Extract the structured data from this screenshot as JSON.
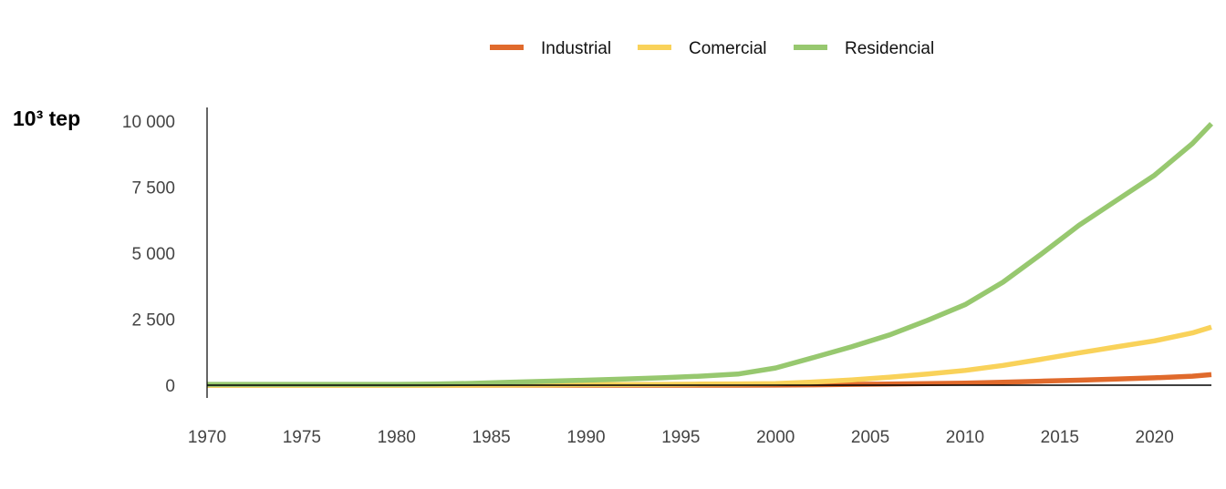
{
  "chart_data": {
    "type": "line",
    "ylabel": "10³ tep",
    "xlim": [
      1970,
      2023
    ],
    "ylim": [
      0,
      10000
    ],
    "x_ticks": [
      1970,
      1975,
      1980,
      1985,
      1990,
      1995,
      2000,
      2005,
      2010,
      2015,
      2020
    ],
    "y_ticks": [
      0,
      2500,
      5000,
      7500,
      10000
    ],
    "y_tick_labels": [
      "0",
      "2 500",
      "5 000",
      "7 500",
      "10 000"
    ],
    "legend_placement": "top-center",
    "grid": false,
    "x": [
      1970,
      1972,
      1974,
      1976,
      1978,
      1980,
      1982,
      1984,
      1986,
      1988,
      1990,
      1992,
      1994,
      1996,
      1998,
      2000,
      2002,
      2004,
      2006,
      2008,
      2010,
      2012,
      2014,
      2016,
      2018,
      2020,
      2022,
      2023
    ],
    "series": [
      {
        "name": "Industrial",
        "color": "#E06A2C",
        "values": [
          0,
          0,
          0,
          0,
          0,
          0,
          0,
          0,
          0,
          0,
          0,
          0,
          0,
          0,
          0,
          5,
          15,
          30,
          45,
          60,
          80,
          110,
          150,
          190,
          230,
          280,
          340,
          400
        ]
      },
      {
        "name": "Comercial",
        "color": "#F9D25A",
        "values": [
          0,
          0,
          0,
          0,
          0,
          0,
          0,
          5,
          10,
          15,
          20,
          25,
          30,
          40,
          50,
          60,
          120,
          200,
          300,
          420,
          560,
          750,
          980,
          1220,
          1450,
          1680,
          1980,
          2200
        ]
      },
      {
        "name": "Residencial",
        "color": "#97C86F",
        "values": [
          30,
          30,
          30,
          30,
          30,
          30,
          40,
          70,
          110,
          150,
          190,
          230,
          280,
          340,
          420,
          650,
          1050,
          1450,
          1900,
          2450,
          3050,
          3900,
          4950,
          6050,
          7000,
          7950,
          9150,
          9900
        ]
      }
    ]
  }
}
